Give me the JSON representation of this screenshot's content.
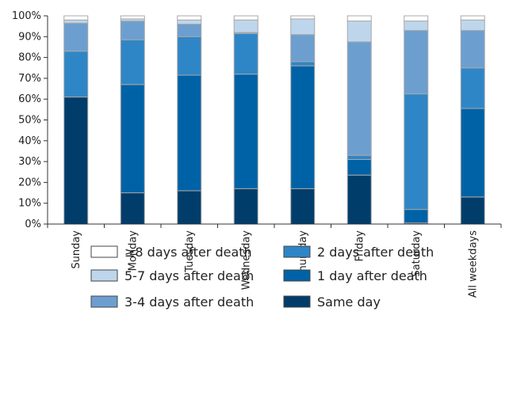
{
  "chart_data": {
    "type": "bar",
    "stacked": true,
    "percent": true,
    "title": "",
    "xlabel": "",
    "ylabel": "",
    "ylim": [
      0,
      100
    ],
    "y_ticks": [
      "0%",
      "10%",
      "20%",
      "30%",
      "40%",
      "50%",
      "60%",
      "70%",
      "80%",
      "90%",
      "100%"
    ],
    "grid": false,
    "legend_position": "bottom",
    "categories": [
      "Sunday",
      "Monday",
      "Tuesday",
      "Wednesday",
      "Thursday",
      "Friday",
      "Saturday",
      "All weekdays"
    ],
    "series": [
      {
        "name": "Same day",
        "color": "#003d6b",
        "values": [
          61,
          15,
          16,
          17,
          17,
          23.5,
          0.5,
          13
        ]
      },
      {
        "name": "1 day after death",
        "color": "#0062a6",
        "values": [
          0,
          52,
          55.5,
          55,
          59,
          7.5,
          6.5,
          42.5
        ]
      },
      {
        "name": "2 days after death",
        "color": "#2f86c6",
        "values": [
          22,
          21.5,
          18.5,
          19.5,
          2,
          2,
          55.5,
          19.5
        ]
      },
      {
        "name": "3-4 days after death",
        "color": "#6c9fcf",
        "values": [
          13.5,
          9,
          6,
          0.5,
          13,
          54.5,
          30.5,
          18
        ]
      },
      {
        "name": "5-7 days after death",
        "color": "#bed6ec",
        "values": [
          1.5,
          1,
          2,
          6,
          7.5,
          10,
          4.5,
          5
        ]
      },
      {
        "name": "≥8 days after death",
        "color": "#ffffff",
        "values": [
          2,
          1.5,
          2,
          2,
          1.5,
          2.5,
          2.5,
          2
        ]
      }
    ],
    "legend_order": [
      "≥8 days after death",
      "2 days after death",
      "5-7 days after death",
      "1 day after death",
      "3-4 days after death",
      "Same day"
    ]
  }
}
